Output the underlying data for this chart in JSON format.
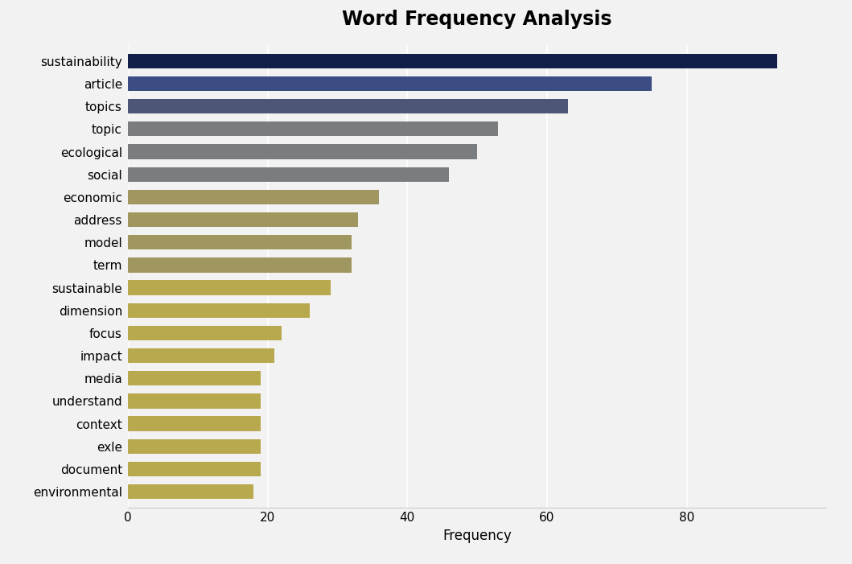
{
  "title": "Word Frequency Analysis",
  "xlabel": "Frequency",
  "categories": [
    "environmental",
    "document",
    "exle",
    "context",
    "understand",
    "media",
    "impact",
    "focus",
    "dimension",
    "sustainable",
    "term",
    "model",
    "address",
    "economic",
    "social",
    "ecological",
    "topic",
    "topics",
    "article",
    "sustainability"
  ],
  "values": [
    18,
    19,
    19,
    19,
    19,
    19,
    21,
    22,
    26,
    29,
    32,
    32,
    33,
    36,
    46,
    50,
    53,
    63,
    75,
    93
  ],
  "bar_colors": [
    "#b8a84e",
    "#b8a84e",
    "#b8a84e",
    "#b8a84e",
    "#b8a84e",
    "#b8a84e",
    "#b8a84e",
    "#b8a84e",
    "#b8a84e",
    "#b8a84e",
    "#a09660",
    "#a09660",
    "#a09660",
    "#a09660",
    "#7a7d80",
    "#7a7d80",
    "#7a7d80",
    "#4e5678",
    "#3b4d82",
    "#121f4a"
  ],
  "xlim": [
    0,
    100
  ],
  "xticks": [
    0,
    20,
    40,
    60,
    80
  ],
  "background_color": "#f2f2f2",
  "plot_bg_color": "#f2f2f2",
  "title_fontsize": 17,
  "tick_fontsize": 11,
  "label_fontsize": 12,
  "bar_height": 0.65,
  "figsize": [
    10.59,
    7.01
  ],
  "dpi": 100
}
